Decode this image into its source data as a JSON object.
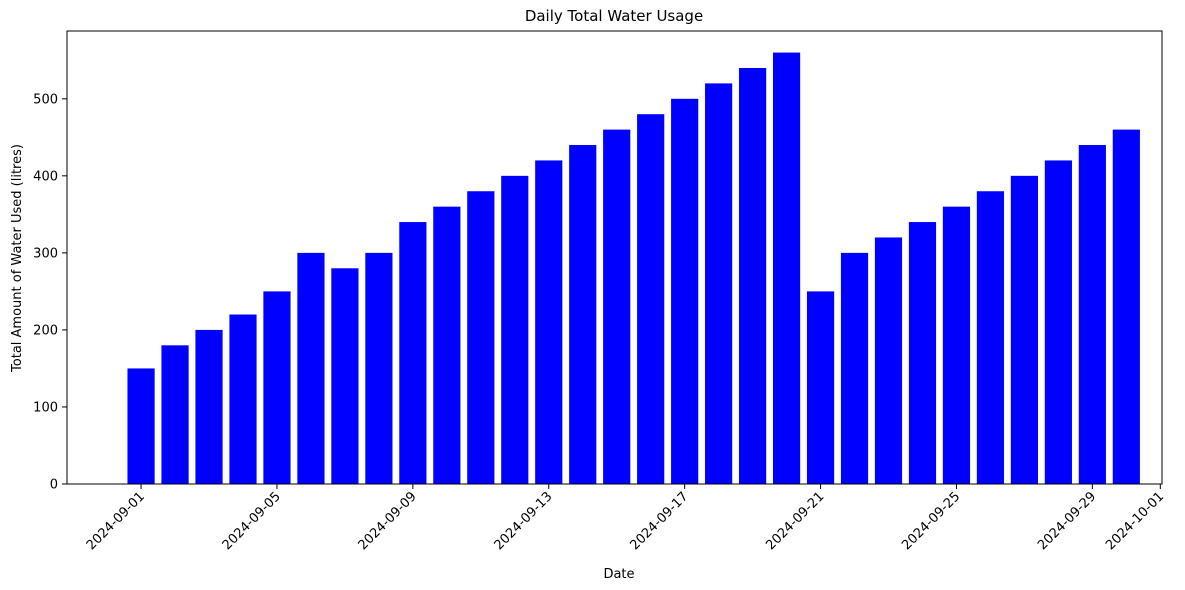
{
  "chart_data": {
    "type": "bar",
    "title": "Daily Total Water Usage",
    "xlabel": "Date",
    "ylabel": "Total Amount of Water Used (litres)",
    "x": [
      "2024-09-01",
      "2024-09-02",
      "2024-09-03",
      "2024-09-04",
      "2024-09-05",
      "2024-09-06",
      "2024-09-07",
      "2024-09-08",
      "2024-09-09",
      "2024-09-10",
      "2024-09-11",
      "2024-09-12",
      "2024-09-13",
      "2024-09-14",
      "2024-09-15",
      "2024-09-16",
      "2024-09-17",
      "2024-09-18",
      "2024-09-19",
      "2024-09-20",
      "2024-09-21",
      "2024-09-22",
      "2024-09-23",
      "2024-09-24",
      "2024-09-25",
      "2024-09-26",
      "2024-09-27",
      "2024-09-28",
      "2024-09-29",
      "2024-09-30"
    ],
    "values": [
      150,
      180,
      200,
      220,
      250,
      300,
      280,
      300,
      340,
      360,
      380,
      400,
      420,
      440,
      460,
      480,
      500,
      520,
      540,
      560,
      250,
      300,
      320,
      340,
      360,
      380,
      400,
      420,
      440,
      460
    ],
    "xlim": [
      "2024-08-30",
      "2024-10-01"
    ],
    "ylim": [
      0,
      588
    ],
    "x_ticks": [
      "2024-09-01",
      "2024-09-05",
      "2024-09-09",
      "2024-09-13",
      "2024-09-17",
      "2024-09-21",
      "2024-09-25",
      "2024-09-29",
      "2024-10-01"
    ],
    "y_ticks": [
      0,
      100,
      200,
      300,
      400,
      500
    ],
    "bar_color": "#0000ff",
    "grid": false,
    "legend": "none"
  }
}
